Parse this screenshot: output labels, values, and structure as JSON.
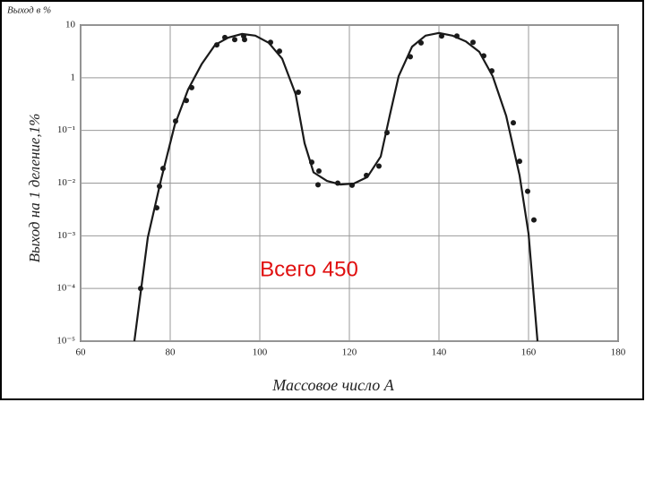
{
  "chart_data": {
    "type": "scatter",
    "title": "Выход в %",
    "ylabel": "Выход на 1 деление,1%",
    "xlabel": "Массовое число A",
    "annotation": "Всего 450",
    "xlim": [
      60,
      180
    ],
    "xticks": [
      60,
      80,
      100,
      120,
      140,
      160,
      180
    ],
    "ylim": [
      1e-05,
      10
    ],
    "ylog": true,
    "yticks": [
      10,
      1,
      {
        "value": 0.1,
        "label": "10⁻¹"
      },
      {
        "value": 0.01,
        "label": "10⁻²"
      },
      {
        "value": 0.001,
        "label": "10⁻³"
      },
      {
        "value": 0.0001,
        "label": "10⁻⁴"
      },
      {
        "value": 1e-05,
        "label": "10⁻⁵"
      }
    ],
    "grid": true,
    "series": [
      {
        "type": "scatter",
        "color": "#1a1a1a",
        "x": [
          73.4,
          77,
          77.6,
          78.4,
          81.2,
          83.6,
          84.8,
          90.4,
          92.2,
          94.4,
          96.6,
          96.4,
          102.4,
          104.4,
          108.6,
          111.6,
          113.2,
          113,
          117.4,
          120.6,
          123.8,
          126.6,
          128.4,
          133.6,
          136,
          140.6,
          144,
          147.6,
          150,
          151.8,
          156.6,
          158,
          159.8,
          161.2
        ],
        "values": [
          0.0001,
          0.0034,
          0.0087,
          0.019,
          0.15,
          0.37,
          0.65,
          4.2,
          5.8,
          5.3,
          5.3,
          6.2,
          4.7,
          3.2,
          0.53,
          0.025,
          0.017,
          0.0093,
          0.01,
          0.0091,
          0.014,
          0.021,
          0.091,
          2.5,
          4.6,
          6.2,
          6.2,
          4.7,
          2.6,
          1.35,
          0.14,
          0.026,
          0.007,
          0.002
        ]
      },
      {
        "type": "line",
        "color": "#1a1a1a",
        "x": [
          72,
          75,
          78,
          81,
          84,
          87,
          90,
          93,
          96,
          99,
          102,
          105,
          108,
          110,
          112,
          115,
          118,
          121,
          124,
          127,
          129,
          131,
          134,
          137,
          140,
          143,
          146,
          149,
          152,
          155,
          158,
          160,
          162
        ],
        "values": [
          1e-05,
          0.00093,
          0.012,
          0.126,
          0.6,
          1.8,
          4.2,
          5.8,
          6.8,
          6.3,
          4.6,
          2.3,
          0.49,
          0.057,
          0.016,
          0.011,
          0.0094,
          0.0098,
          0.013,
          0.032,
          0.19,
          1.07,
          3.9,
          6.3,
          7.1,
          6.3,
          4.9,
          3.1,
          1.07,
          0.19,
          0.014,
          0.0011,
          1e-05
        ]
      }
    ]
  }
}
